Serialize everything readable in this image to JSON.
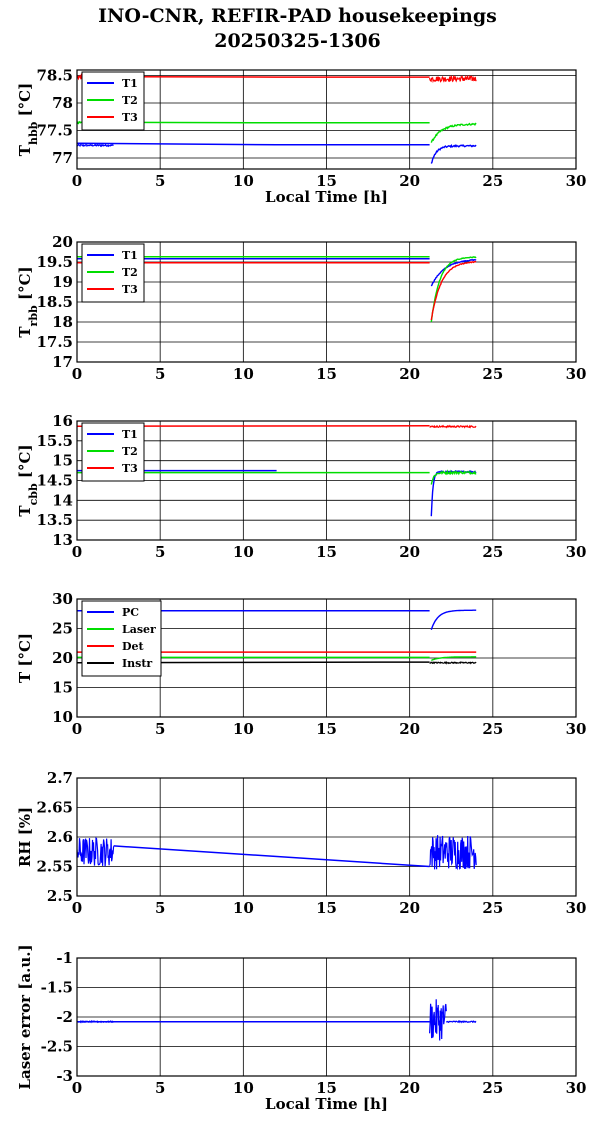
{
  "page": {
    "title": "INO-CNR, REFIR-PAD housekeepings",
    "subtitle": "20250325-1306"
  },
  "colors": {
    "blue": "#0000ff",
    "green": "#00dd00",
    "red": "#ff0000",
    "black": "#000000"
  },
  "chart_data": [
    {
      "id": "panel1",
      "type": "line",
      "xlabel": "Local Time [h]",
      "ylabel_main": "T",
      "ylabel_sub": "hbb",
      "ylabel_tail": " [°C]",
      "xlim": [
        0,
        30
      ],
      "ylim": [
        76.8,
        78.6
      ],
      "xticks": [
        0,
        5,
        10,
        15,
        20,
        25,
        30
      ],
      "yticks": [
        77,
        77.5,
        78,
        78.5
      ],
      "ytick_labels": [
        "77",
        "77.5",
        "78",
        "78.5"
      ],
      "grid": true,
      "legend": "top-left",
      "series": [
        {
          "name": "T1",
          "color": "#0000ff",
          "base": [
            [
              0,
              77.27
            ],
            [
              12,
              77.24
            ],
            [
              21.2,
              77.24
            ]
          ],
          "noisy": [
            [
              0,
              2.2,
              77.23,
              0.015
            ]
          ],
          "gap": [
            21.2,
            21.3
          ],
          "recovery": {
            "x0": 21.3,
            "x1": 24.0,
            "y0": 76.9,
            "y1": 77.22,
            "tau": 0.3,
            "noise": 0.015
          }
        },
        {
          "name": "T2",
          "color": "#00dd00",
          "base": [
            [
              0,
              77.65
            ],
            [
              12,
              77.64
            ],
            [
              21.2,
              77.64
            ]
          ],
          "noisy": [
            [
              0,
              2.2,
              77.64,
              0.02
            ]
          ],
          "gap": [
            21.2,
            21.3
          ],
          "recovery": {
            "x0": 21.3,
            "x1": 24.0,
            "y0": 77.28,
            "y1": 77.62,
            "tau": 0.6,
            "noise": 0.015
          }
        },
        {
          "name": "T3",
          "color": "#ff0000",
          "base": [
            [
              0,
              78.48
            ],
            [
              12,
              78.47
            ],
            [
              21.2,
              78.47
            ]
          ],
          "noisy": [
            [
              0,
              2.2,
              78.47,
              0.04
            ],
            [
              21.2,
              24.0,
              78.44,
              0.05
            ]
          ]
        }
      ]
    },
    {
      "id": "panel2",
      "type": "line",
      "xlabel": "",
      "ylabel_main": "T",
      "ylabel_sub": "rbb",
      "ylabel_tail": " [°C]",
      "xlim": [
        0,
        30
      ],
      "ylim": [
        17,
        20
      ],
      "xticks": [
        0,
        5,
        10,
        15,
        20,
        25,
        30
      ],
      "yticks": [
        17,
        17.5,
        18,
        18.5,
        19,
        19.5,
        20
      ],
      "ytick_labels": [
        "17",
        "17.5",
        "18",
        "18.5",
        "19",
        "19.5",
        "20"
      ],
      "grid": true,
      "legend": "top-left",
      "series": [
        {
          "name": "T1",
          "color": "#0000ff",
          "base": [
            [
              0,
              19.58
            ],
            [
              21.2,
              19.58
            ]
          ],
          "gap": [
            21.2,
            21.3
          ],
          "recovery": {
            "x0": 21.3,
            "x1": 24.0,
            "y0": 18.9,
            "y1": 19.58,
            "tau": 0.8,
            "noise": 0.01
          }
        },
        {
          "name": "T2",
          "color": "#00dd00",
          "base": [
            [
              0,
              19.63
            ],
            [
              21.2,
              19.63
            ]
          ],
          "gap": [
            21.2,
            21.3
          ],
          "recovery": {
            "x0": 21.3,
            "x1": 24.0,
            "y0": 18.0,
            "y1": 19.63,
            "tau": 0.5,
            "noise": 0.01
          }
        },
        {
          "name": "T3",
          "color": "#ff0000",
          "base": [
            [
              0,
              19.48
            ],
            [
              21.2,
              19.48
            ]
          ],
          "gap": [
            21.2,
            21.3
          ],
          "recovery": {
            "x0": 21.3,
            "x1": 24.0,
            "y0": 18.05,
            "y1": 19.52,
            "tau": 0.6,
            "noise": 0.01
          }
        }
      ]
    },
    {
      "id": "panel3",
      "type": "line",
      "xlabel": "",
      "ylabel_main": "T",
      "ylabel_sub": "cbb",
      "ylabel_tail": " [°C]",
      "xlim": [
        0,
        30
      ],
      "ylim": [
        13,
        16
      ],
      "xticks": [
        0,
        5,
        10,
        15,
        20,
        25,
        30
      ],
      "yticks": [
        13,
        13.5,
        14,
        14.5,
        15,
        15.5,
        16
      ],
      "ytick_labels": [
        "13",
        "13.5",
        "14",
        "14.5",
        "15",
        "15.5",
        "16"
      ],
      "grid": true,
      "legend": "top-left",
      "series": [
        {
          "name": "T1",
          "color": "#0000ff",
          "base": [
            [
              0,
              14.75
            ],
            [
              12,
              14.75
            ]
          ],
          "gap": [
            21.2,
            21.3
          ],
          "recovery": {
            "x0": 21.3,
            "x1": 24.0,
            "y0": 13.6,
            "y1": 14.72,
            "tau": 0.1,
            "noise": 0.02
          }
        },
        {
          "name": "T2",
          "color": "#00dd00",
          "base": [
            [
              0,
              14.7
            ],
            [
              21.2,
              14.7
            ]
          ],
          "gap": [
            21.2,
            21.3
          ],
          "recovery": {
            "x0": 21.3,
            "x1": 24.0,
            "y0": 14.4,
            "y1": 14.7,
            "tau": 0.15,
            "noise": 0.03
          }
        },
        {
          "name": "T3",
          "color": "#ff0000",
          "base": [
            [
              0,
              15.87
            ],
            [
              21.2,
              15.88
            ]
          ],
          "noisy": [
            [
              21.2,
              24.0,
              15.86,
              0.02
            ]
          ]
        }
      ]
    },
    {
      "id": "panel4",
      "type": "line",
      "xlabel": "",
      "ylabel_main": "T [°C]",
      "ylabel_sub": "",
      "ylabel_tail": "",
      "xlim": [
        0,
        30
      ],
      "ylim": [
        10,
        30
      ],
      "xticks": [
        0,
        5,
        10,
        15,
        20,
        25,
        30
      ],
      "yticks": [
        10,
        15,
        20,
        25,
        30
      ],
      "ytick_labels": [
        "10",
        "15",
        "20",
        "25",
        "30"
      ],
      "grid": true,
      "legend": "top-left",
      "series": [
        {
          "name": "PC",
          "color": "#0000ff",
          "base": [
            [
              0,
              28.0
            ],
            [
              21.2,
              28.0
            ]
          ],
          "gap": [
            21.2,
            21.3
          ],
          "recovery": {
            "x0": 21.3,
            "x1": 24.0,
            "y0": 24.8,
            "y1": 28.1,
            "tau": 0.4,
            "noise": 0.0
          }
        },
        {
          "name": "Laser",
          "color": "#00dd00",
          "base": [
            [
              0,
              20.1
            ],
            [
              21.2,
              20.1
            ]
          ],
          "gap": [
            21.2,
            21.3
          ],
          "recovery": {
            "x0": 21.3,
            "x1": 24.0,
            "y0": 19.6,
            "y1": 20.2,
            "tau": 0.5,
            "noise": 0.0
          }
        },
        {
          "name": "Det",
          "color": "#ff0000",
          "base": [
            [
              0,
              21.0
            ],
            [
              24.0,
              21.0
            ]
          ]
        },
        {
          "name": "Instr",
          "color": "#000000",
          "base": [
            [
              0,
              19.2
            ],
            [
              21.2,
              19.3
            ]
          ],
          "noisy": [
            [
              21.2,
              24.0,
              19.2,
              0.1
            ]
          ]
        }
      ]
    },
    {
      "id": "panel5",
      "type": "line",
      "xlabel": "",
      "ylabel_main": "RH [%]",
      "ylabel_sub": "",
      "ylabel_tail": "",
      "xlim": [
        0,
        30
      ],
      "ylim": [
        2.5,
        2.7
      ],
      "xticks": [
        0,
        5,
        10,
        15,
        20,
        25,
        30
      ],
      "yticks": [
        2.5,
        2.55,
        2.6,
        2.65,
        2.7
      ],
      "ytick_labels": [
        "2.5",
        "2.55",
        "2.6",
        "2.65",
        "2.7"
      ],
      "grid": true,
      "legend": "none",
      "series": [
        {
          "name": "",
          "color": "#0000ff",
          "base": [
            [
              2.2,
              2.585
            ],
            [
              21.2,
              2.55
            ]
          ],
          "noisy": [
            [
              0,
              2.2,
              2.575,
              0.025
            ],
            [
              21.2,
              24.0,
              2.575,
              0.03
            ]
          ]
        }
      ]
    },
    {
      "id": "panel6",
      "type": "line",
      "xlabel": "Local Time [h]",
      "ylabel_main": "Laser error [a.u.]",
      "ylabel_sub": "",
      "ylabel_tail": "",
      "xlim": [
        0,
        30
      ],
      "ylim": [
        -3,
        -1
      ],
      "xticks": [
        0,
        5,
        10,
        15,
        20,
        25,
        30
      ],
      "yticks": [
        -3,
        -2.5,
        -2,
        -1.5,
        -1
      ],
      "ytick_labels": [
        "-3",
        "-2.5",
        "-2",
        "-1.5",
        "-1"
      ],
      "grid": true,
      "legend": "none",
      "series": [
        {
          "name": "",
          "color": "#0000ff",
          "base": [
            [
              0,
              -2.08
            ],
            [
              21.2,
              -2.08
            ]
          ],
          "noisy": [
            [
              0,
              2.2,
              -2.08,
              0.01
            ],
            [
              21.2,
              22.2,
              -2.05,
              0.35
            ],
            [
              22.2,
              24.0,
              -2.08,
              0.01
            ]
          ]
        }
      ]
    }
  ]
}
